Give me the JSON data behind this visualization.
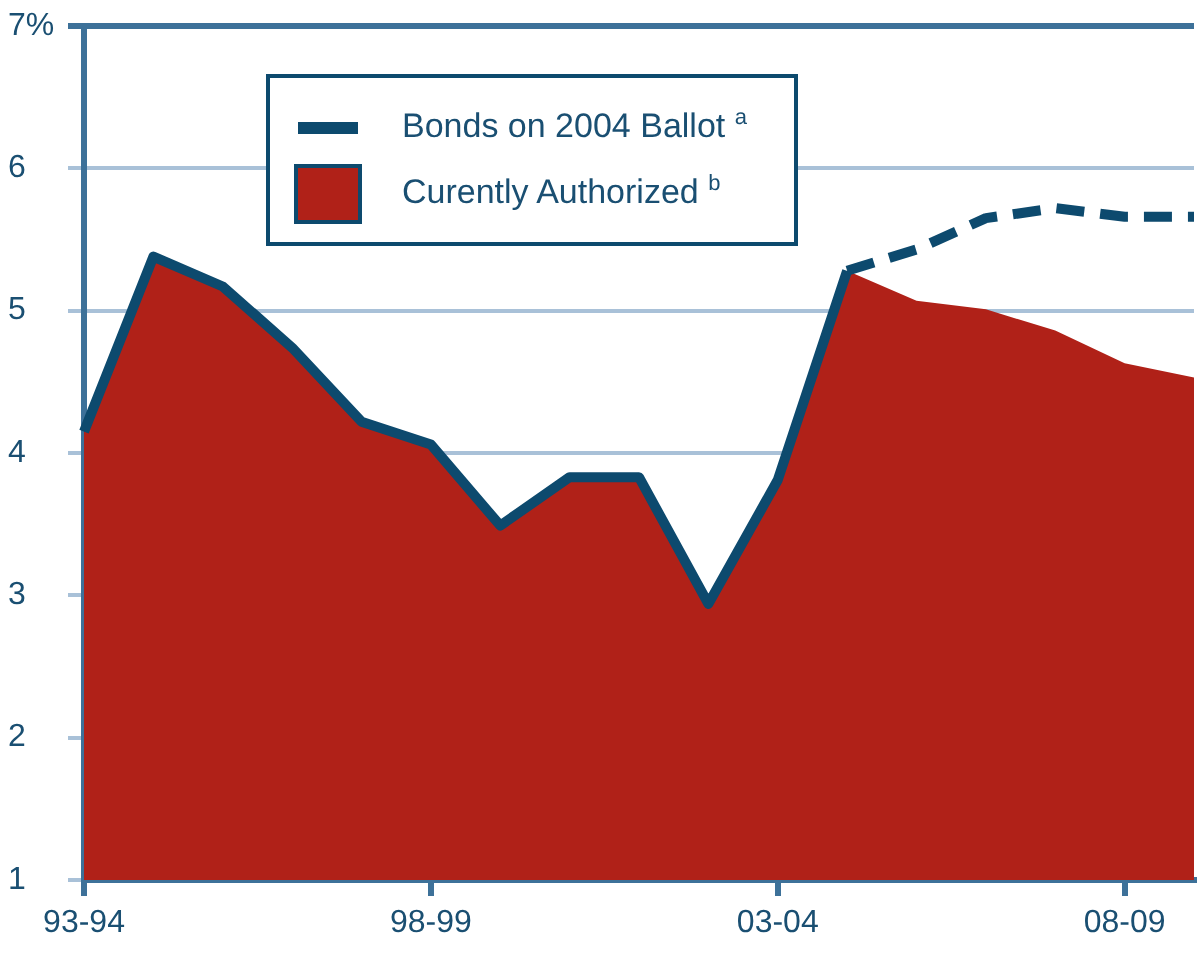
{
  "chart_data": {
    "type": "line",
    "categories": [
      "93-94",
      null,
      null,
      null,
      null,
      "98-99",
      null,
      null,
      null,
      null,
      "03-04",
      null,
      null,
      null,
      null,
      "08-09",
      null
    ],
    "series": [
      {
        "name": "Bonds on 2004 Ballot $^{a}$",
        "line_style": "dashed",
        "color": "#0d4a6e",
        "values": [
          4.15,
          5.38,
          5.17,
          4.74,
          4.22,
          4.06,
          3.49,
          3.83,
          3.83,
          2.94,
          3.81,
          5.28,
          5.43,
          5.65,
          5.72,
          5.66,
          5.66
        ]
      },
      {
        "name": "Curently Authorized $^{b}$",
        "type": "area",
        "color": "#b02118",
        "values": [
          4.15,
          5.38,
          5.17,
          4.74,
          4.22,
          4.06,
          3.49,
          3.83,
          3.83,
          2.94,
          3.81,
          5.28,
          5.07,
          5.01,
          4.86,
          4.63,
          4.53
        ]
      }
    ],
    "ylim": [
      1,
      7
    ],
    "yticks": [
      1,
      2,
      3,
      4,
      5,
      6,
      {
        "value": 7,
        "label": "7%"
      }
    ],
    "grid": "y",
    "legend": "top",
    "marker": "none"
  }
}
